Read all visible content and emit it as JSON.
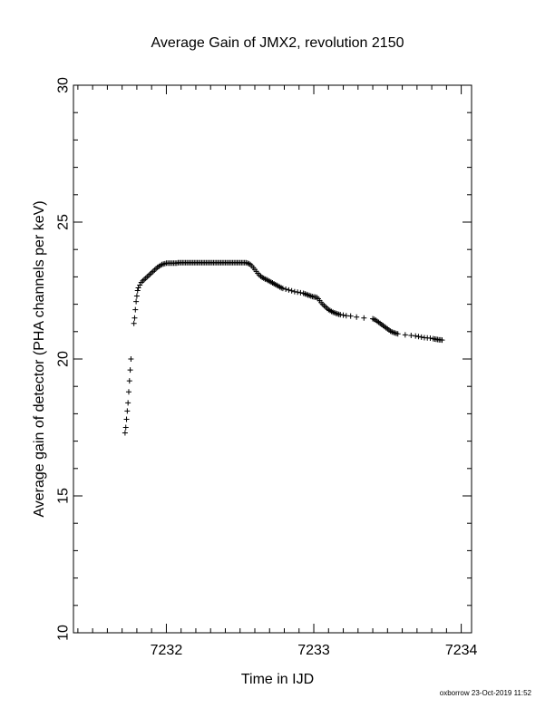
{
  "footer": "oxborrow 23-Oct-2019 11:52",
  "chart_data": {
    "type": "scatter",
    "marker": "+",
    "title": "Average Gain of JMX2, revolution 2150",
    "xlabel": "Time in IJD",
    "ylabel": "Average gain of detector (PHA channels per keV)",
    "xlim": [
      7231.37,
      7234.07
    ],
    "ylim": [
      10,
      30
    ],
    "xticks": [
      7232,
      7233,
      7234
    ],
    "xtick_labels": [
      "7232",
      "7233",
      "7234"
    ],
    "yticks": [
      10,
      15,
      20,
      25,
      30
    ],
    "ytick_labels": [
      "10",
      "15",
      "20",
      "25",
      "30"
    ],
    "grid": false,
    "legend": "none",
    "color": "#000000",
    "points": [
      [
        7231.72,
        17.3
      ],
      [
        7231.725,
        17.5
      ],
      [
        7231.73,
        17.8
      ],
      [
        7231.735,
        18.1
      ],
      [
        7231.74,
        18.4
      ],
      [
        7231.745,
        18.8
      ],
      [
        7231.75,
        19.2
      ],
      [
        7231.755,
        19.6
      ],
      [
        7231.76,
        20.0
      ],
      [
        7231.78,
        21.3
      ],
      [
        7231.785,
        21.5
      ],
      [
        7231.79,
        21.8
      ],
      [
        7231.795,
        22.1
      ],
      [
        7231.8,
        22.3
      ],
      [
        7231.805,
        22.5
      ],
      [
        7231.81,
        22.6
      ],
      [
        7231.82,
        22.7
      ],
      [
        7231.83,
        22.8
      ],
      [
        7231.84,
        22.85
      ],
      [
        7231.85,
        22.9
      ],
      [
        7231.86,
        22.95
      ],
      [
        7231.87,
        23.0
      ],
      [
        7231.88,
        23.05
      ],
      [
        7231.89,
        23.1
      ],
      [
        7231.9,
        23.15
      ],
      [
        7231.91,
        23.2
      ],
      [
        7231.92,
        23.25
      ],
      [
        7231.93,
        23.3
      ],
      [
        7231.94,
        23.35
      ],
      [
        7231.95,
        23.38
      ],
      [
        7231.96,
        23.42
      ],
      [
        7231.97,
        23.45
      ],
      [
        7231.98,
        23.47
      ],
      [
        7231.99,
        23.48
      ],
      [
        7232.0,
        23.5
      ],
      [
        7232.01,
        23.5
      ],
      [
        7232.02,
        23.5
      ],
      [
        7232.03,
        23.5
      ],
      [
        7232.04,
        23.5
      ],
      [
        7232.05,
        23.5
      ],
      [
        7232.06,
        23.5
      ],
      [
        7232.07,
        23.5
      ],
      [
        7232.08,
        23.52
      ],
      [
        7232.09,
        23.52
      ],
      [
        7232.1,
        23.52
      ],
      [
        7232.11,
        23.52
      ],
      [
        7232.12,
        23.52
      ],
      [
        7232.13,
        23.52
      ],
      [
        7232.14,
        23.52
      ],
      [
        7232.15,
        23.52
      ],
      [
        7232.16,
        23.52
      ],
      [
        7232.17,
        23.52
      ],
      [
        7232.18,
        23.52
      ],
      [
        7232.19,
        23.52
      ],
      [
        7232.2,
        23.52
      ],
      [
        7232.21,
        23.52
      ],
      [
        7232.22,
        23.52
      ],
      [
        7232.23,
        23.52
      ],
      [
        7232.24,
        23.52
      ],
      [
        7232.25,
        23.52
      ],
      [
        7232.26,
        23.52
      ],
      [
        7232.27,
        23.52
      ],
      [
        7232.28,
        23.52
      ],
      [
        7232.29,
        23.52
      ],
      [
        7232.3,
        23.52
      ],
      [
        7232.31,
        23.52
      ],
      [
        7232.32,
        23.52
      ],
      [
        7232.33,
        23.52
      ],
      [
        7232.34,
        23.52
      ],
      [
        7232.35,
        23.52
      ],
      [
        7232.36,
        23.52
      ],
      [
        7232.37,
        23.52
      ],
      [
        7232.38,
        23.52
      ],
      [
        7232.39,
        23.52
      ],
      [
        7232.4,
        23.52
      ],
      [
        7232.41,
        23.52
      ],
      [
        7232.42,
        23.52
      ],
      [
        7232.43,
        23.52
      ],
      [
        7232.44,
        23.52
      ],
      [
        7232.45,
        23.52
      ],
      [
        7232.46,
        23.52
      ],
      [
        7232.47,
        23.52
      ],
      [
        7232.48,
        23.52
      ],
      [
        7232.49,
        23.52
      ],
      [
        7232.5,
        23.52
      ],
      [
        7232.51,
        23.52
      ],
      [
        7232.52,
        23.52
      ],
      [
        7232.53,
        23.52
      ],
      [
        7232.54,
        23.52
      ],
      [
        7232.55,
        23.5
      ],
      [
        7232.56,
        23.48
      ],
      [
        7232.57,
        23.45
      ],
      [
        7232.58,
        23.4
      ],
      [
        7232.59,
        23.33
      ],
      [
        7232.6,
        23.27
      ],
      [
        7232.61,
        23.2
      ],
      [
        7232.62,
        23.13
      ],
      [
        7232.63,
        23.07
      ],
      [
        7232.64,
        23.02
      ],
      [
        7232.65,
        22.98
      ],
      [
        7232.66,
        22.95
      ],
      [
        7232.67,
        22.92
      ],
      [
        7232.68,
        22.9
      ],
      [
        7232.69,
        22.87
      ],
      [
        7232.7,
        22.84
      ],
      [
        7232.71,
        22.81
      ],
      [
        7232.72,
        22.78
      ],
      [
        7232.73,
        22.75
      ],
      [
        7232.74,
        22.72
      ],
      [
        7232.75,
        22.69
      ],
      [
        7232.76,
        22.66
      ],
      [
        7232.77,
        22.63
      ],
      [
        7232.78,
        22.6
      ],
      [
        7232.79,
        22.58
      ],
      [
        7232.81,
        22.55
      ],
      [
        7232.83,
        22.52
      ],
      [
        7232.85,
        22.49
      ],
      [
        7232.87,
        22.46
      ],
      [
        7232.89,
        22.44
      ],
      [
        7232.91,
        22.42
      ],
      [
        7232.93,
        22.4
      ],
      [
        7232.94,
        22.38
      ],
      [
        7232.95,
        22.36
      ],
      [
        7232.96,
        22.34
      ],
      [
        7232.97,
        22.32
      ],
      [
        7232.98,
        22.3
      ],
      [
        7232.99,
        22.28
      ],
      [
        7233.0,
        22.27
      ],
      [
        7233.01,
        22.26
      ],
      [
        7233.02,
        22.25
      ],
      [
        7233.03,
        22.2
      ],
      [
        7233.04,
        22.13
      ],
      [
        7233.05,
        22.06
      ],
      [
        7233.06,
        22.0
      ],
      [
        7233.07,
        21.95
      ],
      [
        7233.08,
        21.9
      ],
      [
        7233.09,
        21.85
      ],
      [
        7233.1,
        21.8
      ],
      [
        7233.11,
        21.77
      ],
      [
        7233.12,
        21.74
      ],
      [
        7233.13,
        21.71
      ],
      [
        7233.14,
        21.69
      ],
      [
        7233.15,
        21.67
      ],
      [
        7233.16,
        21.65
      ],
      [
        7233.17,
        21.63
      ],
      [
        7233.18,
        21.62
      ],
      [
        7233.2,
        21.6
      ],
      [
        7233.22,
        21.58
      ],
      [
        7233.25,
        21.57
      ],
      [
        7233.29,
        21.53
      ],
      [
        7233.34,
        21.5
      ],
      [
        7233.4,
        21.47
      ],
      [
        7233.41,
        21.45
      ],
      [
        7233.42,
        21.42
      ],
      [
        7233.43,
        21.38
      ],
      [
        7233.44,
        21.34
      ],
      [
        7233.45,
        21.3
      ],
      [
        7233.46,
        21.26
      ],
      [
        7233.47,
        21.22
      ],
      [
        7233.48,
        21.18
      ],
      [
        7233.49,
        21.14
      ],
      [
        7233.5,
        21.1
      ],
      [
        7233.51,
        21.06
      ],
      [
        7233.52,
        21.02
      ],
      [
        7233.53,
        20.99
      ],
      [
        7233.54,
        20.97
      ],
      [
        7233.55,
        20.95
      ],
      [
        7233.56,
        20.93
      ],
      [
        7233.57,
        20.92
      ],
      [
        7233.62,
        20.88
      ],
      [
        7233.66,
        20.86
      ],
      [
        7233.69,
        20.84
      ],
      [
        7233.71,
        20.82
      ],
      [
        7233.73,
        20.8
      ],
      [
        7233.75,
        20.78
      ],
      [
        7233.77,
        20.77
      ],
      [
        7233.79,
        20.76
      ],
      [
        7233.81,
        20.74
      ],
      [
        7233.82,
        20.73
      ],
      [
        7233.83,
        20.72
      ],
      [
        7233.84,
        20.71
      ],
      [
        7233.85,
        20.7
      ],
      [
        7233.86,
        20.7
      ],
      [
        7233.87,
        20.69
      ]
    ]
  }
}
